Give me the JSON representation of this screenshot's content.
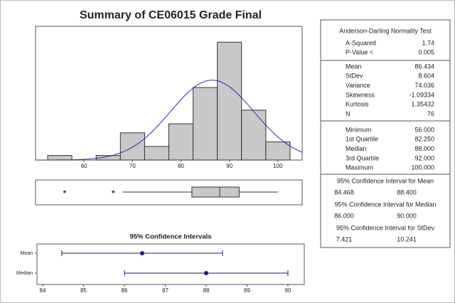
{
  "title": "Summary of CE06015 Grade Final",
  "chart_data": [
    {
      "type": "histogram",
      "bins": [
        52.5,
        57.5,
        62.5,
        67.5,
        72.5,
        77.5,
        82.5,
        87.5,
        92.5,
        97.5,
        102.5
      ],
      "values": [
        1,
        0,
        1,
        6,
        3,
        8,
        16,
        26,
        11,
        4
      ],
      "color": "#c8c8c8",
      "fit_color": "#2b2bb0",
      "xlim": [
        50,
        105
      ],
      "ylim": [
        0,
        29.5
      ],
      "xticks": [
        60,
        70,
        80,
        90,
        100
      ]
    },
    {
      "type": "box",
      "whisker_low": 68,
      "outliers": [
        56,
        66
      ],
      "xlim": [
        50,
        105
      ]
    },
    {
      "type": "interval",
      "title": "95% Confidence Intervals",
      "categories": [
        "Mean",
        "Median"
      ],
      "xlim": [
        83.86,
        90.4
      ],
      "xticks": [
        84,
        85,
        86,
        87,
        88,
        89,
        90
      ],
      "color": "#1a1a8c"
    }
  ],
  "stats": {
    "normality": {
      "title": "Anderson-Darling Normality Test",
      "rows": [
        {
          "label": "A-Squared",
          "value": 1.74
        },
        {
          "label": "P-Value <",
          "value": 0.005
        }
      ]
    },
    "moments": {
      "rows": [
        {
          "label": "Mean",
          "value": 86.434
        },
        {
          "label": "StDev",
          "value": 8.604
        },
        {
          "label": "Variance",
          "value": 74.036
        },
        {
          "label": "Skewness",
          "value": -1.09334
        },
        {
          "label": "Kurtosis",
          "value": 1.35432
        },
        {
          "label": "N",
          "value": 76
        }
      ]
    },
    "quantiles": {
      "rows": [
        {
          "label": "Minimum",
          "value": {
            "value": 56,
            "label": "56.000"
          }
        },
        {
          "label": "1st Quartile",
          "value": {
            "value": 82.25,
            "label": "82.250"
          }
        },
        {
          "label": "Median",
          "value": {
            "value": 88,
            "label": "88.000"
          }
        },
        {
          "label": "3rd Quartile",
          "value": {
            "value": 92,
            "label": "92.000"
          }
        },
        {
          "label": "Maximum",
          "value": {
            "value": 100,
            "label": "100.000"
          }
        }
      ]
    },
    "intervals": [
      {
        "label": "95% Confidence Interval for Mean",
        "low": 84.468,
        "high": {
          "value": 88.4,
          "label": "88.400"
        }
      },
      {
        "label": "95% Confidence Interval for Median",
        "low": {
          "value": 86,
          "label": "86.000"
        },
        "high": {
          "value": 90,
          "label": "90.000"
        }
      },
      {
        "label": "95% Confidence Interval for StDev",
        "low": 7.421,
        "high": 10.241
      }
    ]
  }
}
